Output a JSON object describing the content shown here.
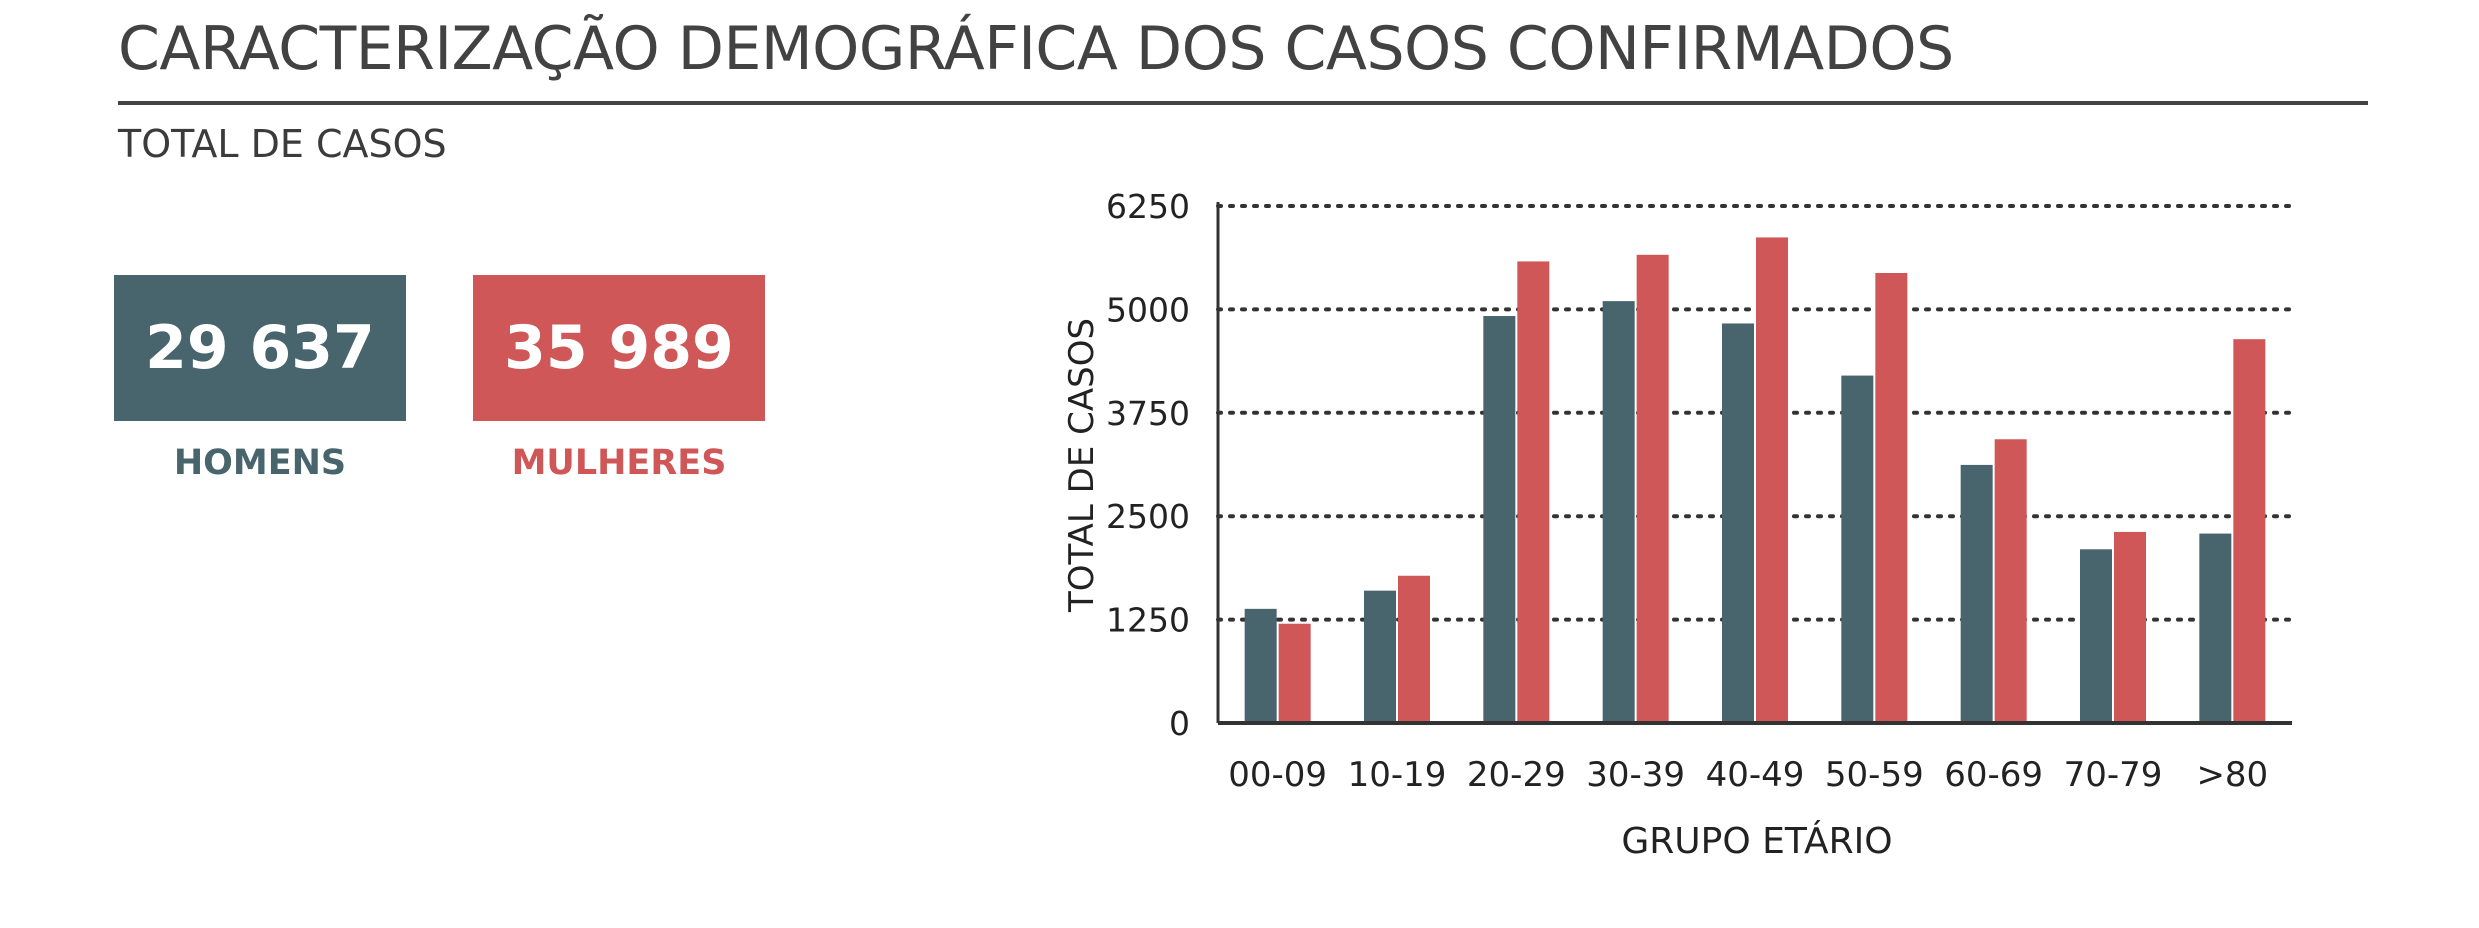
{
  "header": {
    "title": "CARACTERIZAÇÃO DEMOGRÁFICA DOS CASOS CONFIRMADOS",
    "subtitle": "TOTAL DE CASOS"
  },
  "totals": {
    "men": {
      "value": "29 637",
      "label": "HOMENS",
      "color": "#48646c"
    },
    "women": {
      "value": "35 989",
      "label": "MULHERES",
      "color": "#cf5757"
    }
  },
  "chart_data": {
    "type": "bar",
    "categories": [
      "00-09",
      "10-19",
      "20-29",
      "30-39",
      "40-49",
      "50-59",
      "60-69",
      "70-79",
      ">80"
    ],
    "series": [
      {
        "values": [
          1380,
          1600,
          4920,
          5100,
          4830,
          4200,
          3120,
          2100,
          2290
        ],
        "color": "#48646c"
      },
      {
        "values": [
          1200,
          1780,
          5580,
          5660,
          5870,
          5440,
          3430,
          2310,
          4640
        ],
        "color": "#cf5757"
      }
    ],
    "xlabel": "GRUPO ETÁRIO",
    "ylabel": "TOTAL DE CASOS",
    "ylim": [
      0,
      6250
    ],
    "yticks": [
      0,
      1250,
      2500,
      3750,
      5000,
      6250
    ],
    "grid": true,
    "legend": "none"
  }
}
